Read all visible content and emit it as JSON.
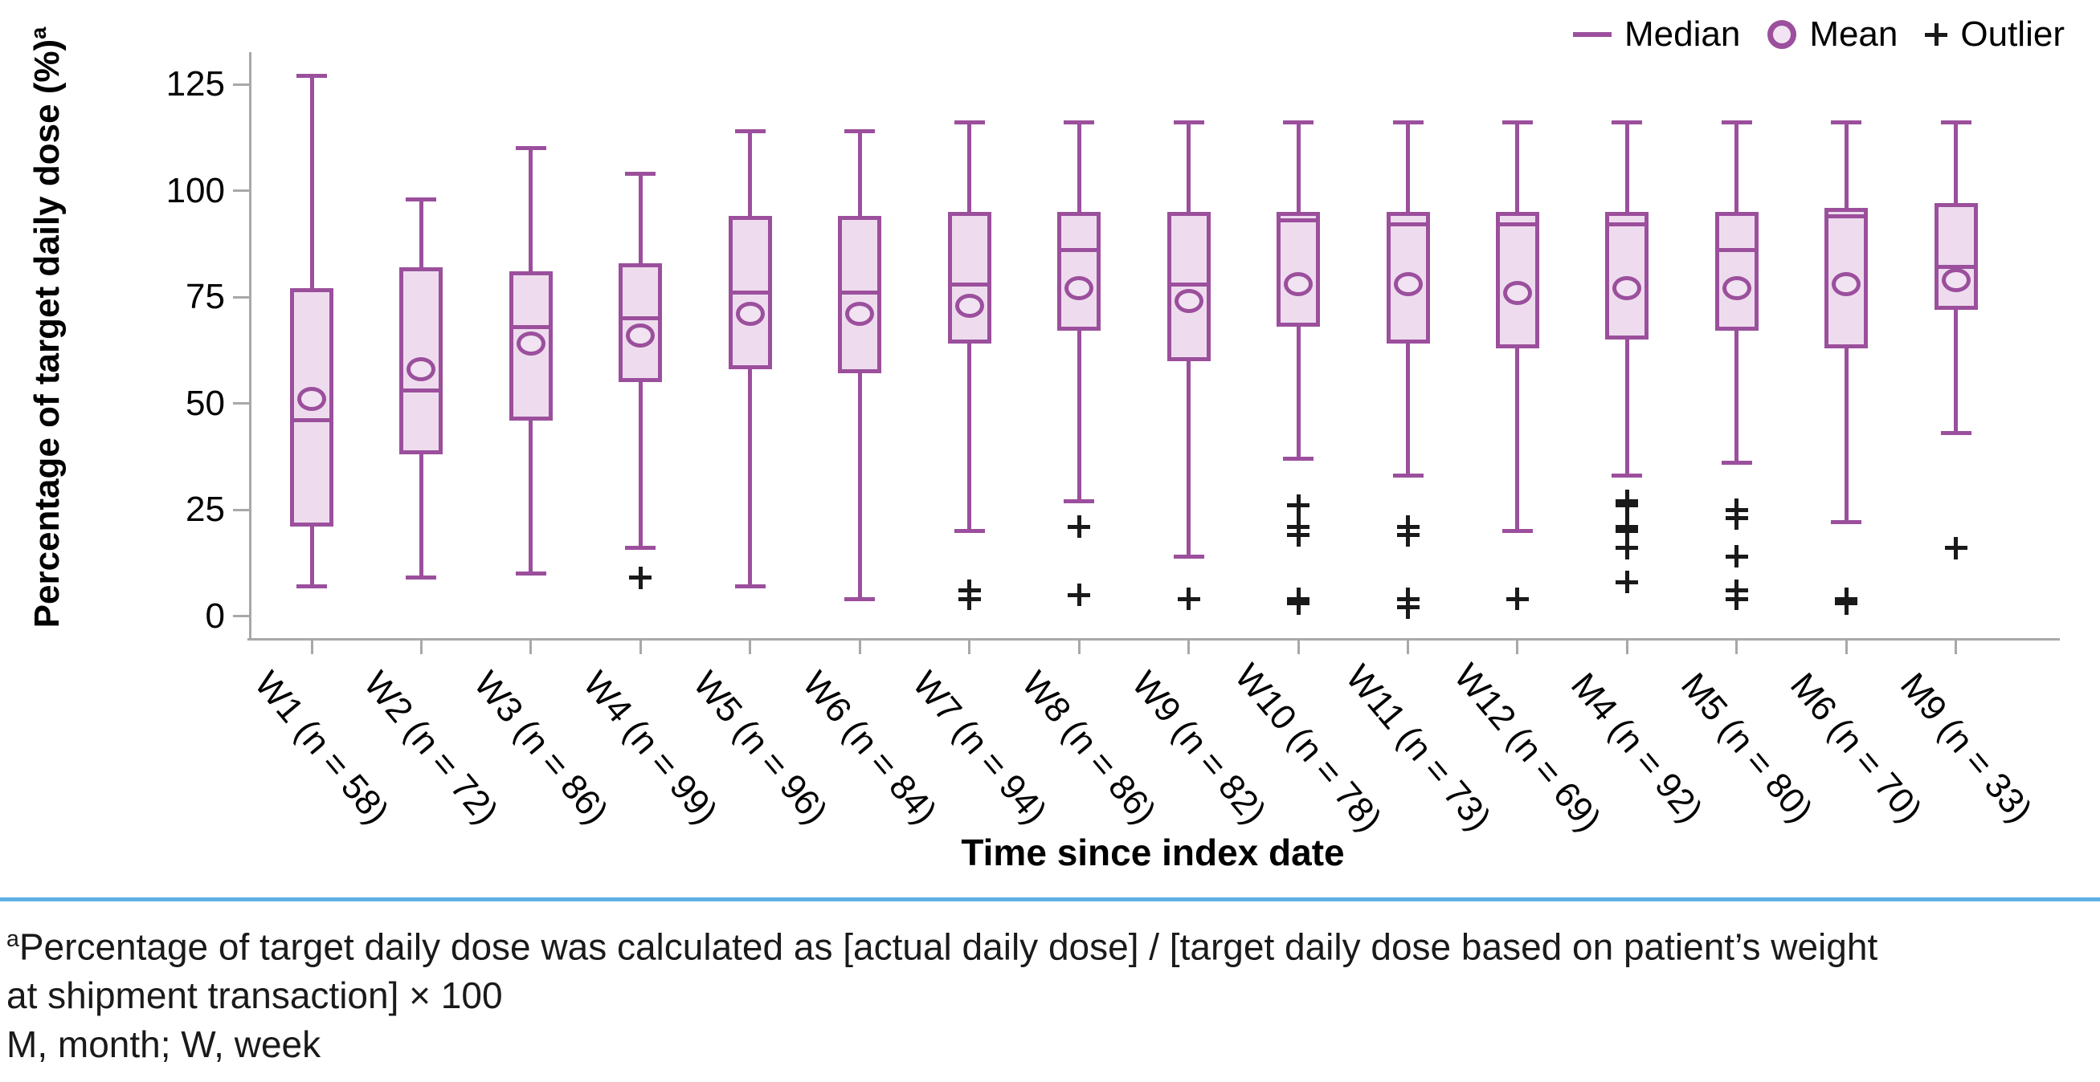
{
  "legend": {
    "items": [
      {
        "label": "Median",
        "marker": "line"
      },
      {
        "label": "Mean",
        "marker": "circle"
      },
      {
        "label": "Outlier",
        "marker": "plus"
      }
    ]
  },
  "y_axis": {
    "title": "Percentage of target daily dose (%)",
    "title_superscript": "a"
  },
  "x_axis": {
    "title": "Time since index date"
  },
  "footnote": {
    "superscript": "a",
    "line1": "Percentage of target daily dose was calculated as [actual daily dose] / [target daily dose based on patient’s weight",
    "line2": "at shipment transaction] × 100",
    "line3": "M, month; W, week"
  },
  "colors": {
    "box_stroke": "#9b4f9c",
    "box_fill": "#eedcee",
    "mean_fill": "#f1e3f2",
    "outlier": "#1a1a1a",
    "axis": "#a8a8a8",
    "divider": "#5fafe4"
  },
  "chart_data": {
    "type": "boxplot",
    "title": "",
    "xlabel": "Time since index date",
    "ylabel": "Percentage of target daily dose (%)",
    "ylim": [
      0,
      133
    ],
    "grid": false,
    "legend_position": "top-right",
    "y_ticks": [
      0,
      25,
      50,
      75,
      100,
      125
    ],
    "boxes": [
      {
        "label": "W1 (n = 58)",
        "n": 58,
        "whisker_low": 7,
        "q1": 21,
        "median": 46,
        "mean": 51,
        "q3": 77,
        "whisker_high": 127,
        "outliers": []
      },
      {
        "label": "W2 (n = 72)",
        "n": 72,
        "whisker_low": 9,
        "q1": 38,
        "median": 53,
        "mean": 58,
        "q3": 82,
        "whisker_high": 98,
        "outliers": []
      },
      {
        "label": "W3 (n = 86)",
        "n": 86,
        "whisker_low": 10,
        "q1": 46,
        "median": 68,
        "mean": 64,
        "q3": 81,
        "whisker_high": 110,
        "outliers": []
      },
      {
        "label": "W4 (n = 99)",
        "n": 99,
        "whisker_low": 16,
        "q1": 55,
        "median": 70,
        "mean": 66,
        "q3": 83,
        "whisker_high": 104,
        "outliers": [
          9
        ]
      },
      {
        "label": "W5 (n = 96)",
        "n": 96,
        "whisker_low": 7,
        "q1": 58,
        "median": 76,
        "mean": 71,
        "q3": 94,
        "whisker_high": 114,
        "outliers": []
      },
      {
        "label": "W6 (n = 84)",
        "n": 84,
        "whisker_low": 4,
        "q1": 57,
        "median": 76,
        "mean": 71,
        "q3": 94,
        "whisker_high": 114,
        "outliers": []
      },
      {
        "label": "W7 (n = 94)",
        "n": 94,
        "whisker_low": 20,
        "q1": 64,
        "median": 78,
        "mean": 73,
        "q3": 95,
        "whisker_high": 116,
        "outliers": [
          6,
          4
        ]
      },
      {
        "label": "W8 (n = 86)",
        "n": 86,
        "whisker_low": 27,
        "q1": 67,
        "median": 86,
        "mean": 77,
        "q3": 95,
        "whisker_high": 116,
        "outliers": [
          21,
          5
        ]
      },
      {
        "label": "W9 (n = 82)",
        "n": 82,
        "whisker_low": 14,
        "q1": 60,
        "median": 78,
        "mean": 74,
        "q3": 95,
        "whisker_high": 116,
        "outliers": [
          4
        ]
      },
      {
        "label": "W10 (n = 78)",
        "n": 78,
        "whisker_low": 37,
        "q1": 68,
        "median": 93,
        "mean": 78,
        "q3": 95,
        "whisker_high": 116,
        "outliers": [
          26,
          21,
          19,
          4,
          3
        ]
      },
      {
        "label": "W11 (n = 73)",
        "n": 73,
        "whisker_low": 33,
        "q1": 64,
        "median": 92,
        "mean": 78,
        "q3": 95,
        "whisker_high": 116,
        "outliers": [
          21,
          19,
          4,
          2
        ]
      },
      {
        "label": "W12 (n = 69)",
        "n": 69,
        "whisker_low": 20,
        "q1": 63,
        "median": 92,
        "mean": 76,
        "q3": 95,
        "whisker_high": 116,
        "outliers": [
          4
        ]
      },
      {
        "label": "M4 (n = 92)",
        "n": 92,
        "whisker_low": 33,
        "q1": 65,
        "median": 92,
        "mean": 77,
        "q3": 95,
        "whisker_high": 116,
        "outliers": [
          27,
          26,
          21,
          20,
          16,
          8
        ]
      },
      {
        "label": "M5 (n = 80)",
        "n": 80,
        "whisker_low": 36,
        "q1": 67,
        "median": 86,
        "mean": 77,
        "q3": 95,
        "whisker_high": 116,
        "outliers": [
          25,
          23,
          14,
          6,
          4
        ]
      },
      {
        "label": "M6 (n = 70)",
        "n": 70,
        "whisker_low": 22,
        "q1": 63,
        "median": 94,
        "mean": 78,
        "q3": 96,
        "whisker_high": 116,
        "outliers": [
          4,
          3
        ]
      },
      {
        "label": "M9 (n = 33)",
        "n": 33,
        "whisker_low": 43,
        "q1": 72,
        "median": 82,
        "mean": 79,
        "q3": 97,
        "whisker_high": 116,
        "outliers": [
          16
        ]
      }
    ]
  }
}
